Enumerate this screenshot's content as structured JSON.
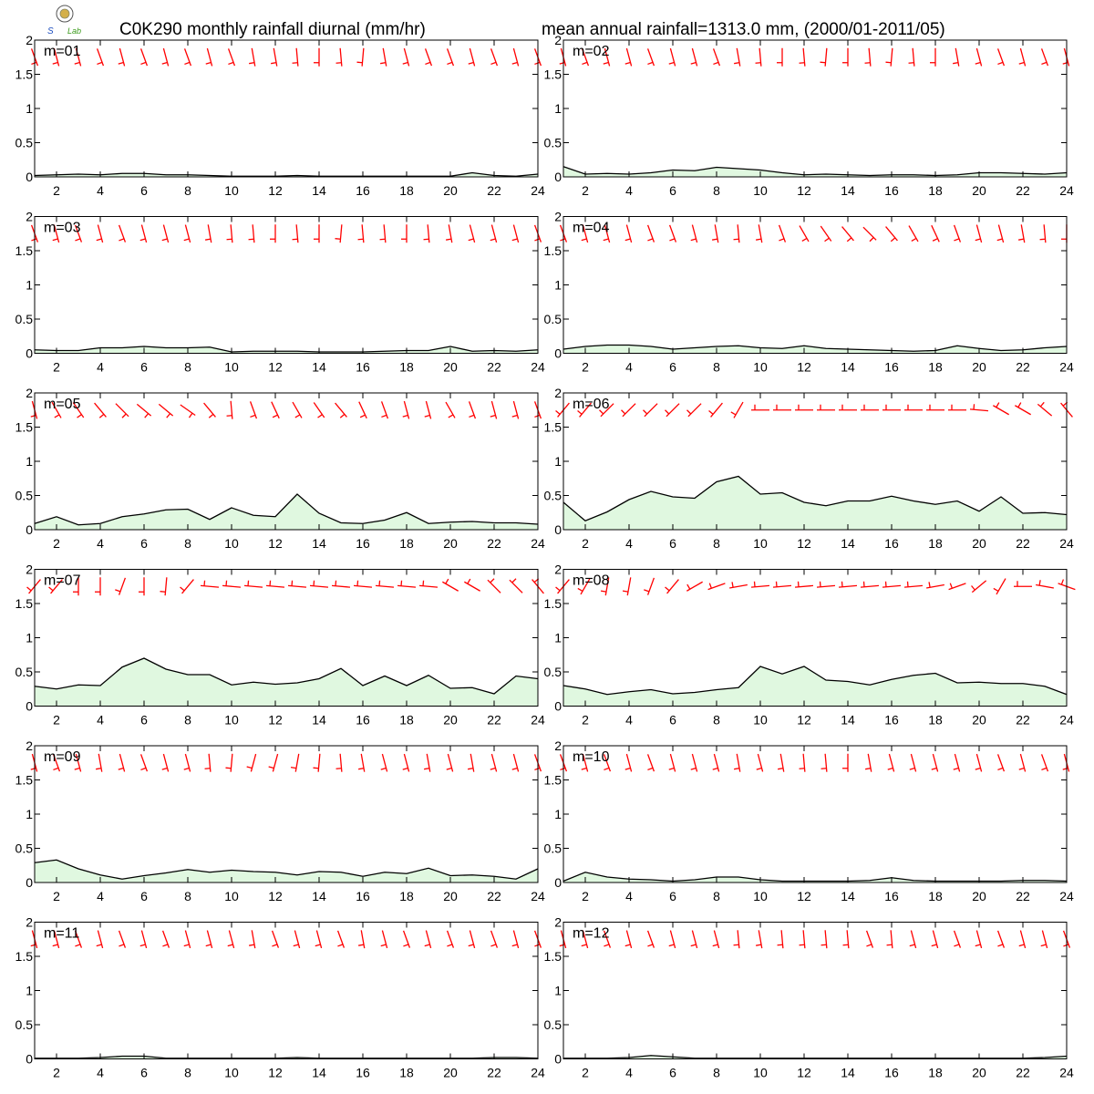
{
  "header": {
    "title_left": "C0K290 monthly rainfall diurnal (mm/hr)",
    "title_right": "mean annual rainfall=1313.0 mm, (2000/01-2011/05)",
    "logo_text": "Lab"
  },
  "colors": {
    "rain_fill": "#e0f8e0",
    "rain_line": "#000000",
    "wind_barb": "#ff0000",
    "axes": "#000000"
  },
  "chart_data": {
    "type": "area",
    "x": [
      1,
      2,
      3,
      4,
      5,
      6,
      7,
      8,
      9,
      10,
      11,
      12,
      13,
      14,
      15,
      16,
      17,
      18,
      19,
      20,
      21,
      22,
      23,
      24
    ],
    "xticks": [
      "2",
      "4",
      "6",
      "8",
      "10",
      "12",
      "14",
      "16",
      "18",
      "20",
      "22",
      "24"
    ],
    "yticks": [
      "0",
      "0.5",
      "1",
      "1.5",
      "2"
    ],
    "xlim": [
      1,
      24
    ],
    "ylim": [
      0,
      2
    ],
    "panels": [
      {
        "label": "m=01",
        "rain": [
          0.02,
          0.03,
          0.04,
          0.03,
          0.05,
          0.05,
          0.03,
          0.03,
          0.02,
          0.01,
          0.01,
          0.01,
          0.02,
          0.01,
          0.01,
          0.01,
          0.01,
          0.01,
          0.01,
          0.01,
          0.06,
          0.02,
          0.01,
          0.04
        ],
        "wind_dir": [
          340,
          345,
          345,
          340,
          345,
          340,
          345,
          340,
          345,
          340,
          350,
          350,
          355,
          0,
          355,
          5,
          350,
          345,
          340,
          340,
          345,
          340,
          345,
          340
        ]
      },
      {
        "label": "m=02",
        "rain": [
          0.15,
          0.04,
          0.05,
          0.04,
          0.06,
          0.1,
          0.09,
          0.14,
          0.12,
          0.1,
          0.06,
          0.03,
          0.04,
          0.03,
          0.02,
          0.03,
          0.03,
          0.02,
          0.03,
          0.06,
          0.06,
          0.05,
          0.04,
          0.06
        ],
        "wind_dir": [
          345,
          340,
          345,
          345,
          340,
          345,
          345,
          340,
          350,
          355,
          0,
          355,
          5,
          0,
          355,
          5,
          355,
          0,
          350,
          345,
          340,
          345,
          340,
          345
        ]
      },
      {
        "label": "m=03",
        "rain": [
          0.05,
          0.04,
          0.04,
          0.08,
          0.08,
          0.1,
          0.08,
          0.08,
          0.09,
          0.02,
          0.03,
          0.03,
          0.03,
          0.02,
          0.02,
          0.02,
          0.03,
          0.04,
          0.04,
          0.1,
          0.03,
          0.04,
          0.03,
          0.05
        ],
        "wind_dir": [
          340,
          345,
          340,
          345,
          340,
          345,
          345,
          345,
          350,
          355,
          355,
          0,
          355,
          0,
          5,
          355,
          355,
          0,
          355,
          350,
          345,
          345,
          345,
          340
        ]
      },
      {
        "label": "m=04",
        "rain": [
          0.06,
          0.1,
          0.12,
          0.12,
          0.1,
          0.06,
          0.08,
          0.1,
          0.11,
          0.08,
          0.07,
          0.11,
          0.07,
          0.06,
          0.05,
          0.04,
          0.03,
          0.04,
          0.11,
          0.07,
          0.04,
          0.05,
          0.08,
          0.1
        ],
        "wind_dir": [
          340,
          345,
          345,
          345,
          340,
          340,
          345,
          350,
          355,
          350,
          340,
          330,
          325,
          320,
          315,
          320,
          330,
          335,
          340,
          345,
          345,
          350,
          355,
          0
        ]
      },
      {
        "label": "m=05",
        "rain": [
          0.09,
          0.19,
          0.07,
          0.09,
          0.19,
          0.23,
          0.29,
          0.3,
          0.15,
          0.32,
          0.21,
          0.19,
          0.52,
          0.24,
          0.1,
          0.09,
          0.14,
          0.25,
          0.09,
          0.11,
          0.12,
          0.1,
          0.1,
          0.08
        ],
        "wind_dir": [
          345,
          330,
          325,
          320,
          315,
          310,
          310,
          305,
          320,
          355,
          340,
          335,
          330,
          325,
          320,
          335,
          340,
          345,
          345,
          330,
          340,
          345,
          345,
          340
        ]
      },
      {
        "label": "m=06",
        "rain": [
          0.4,
          0.13,
          0.26,
          0.44,
          0.56,
          0.48,
          0.46,
          0.7,
          0.78,
          0.52,
          0.54,
          0.4,
          0.35,
          0.42,
          0.42,
          0.49,
          0.42,
          0.37,
          0.42,
          0.27,
          0.48,
          0.24,
          0.25,
          0.22
        ],
        "wind_dir": [
          40,
          40,
          45,
          45,
          45,
          45,
          45,
          40,
          30,
          90,
          90,
          90,
          90,
          90,
          90,
          90,
          90,
          90,
          90,
          95,
          120,
          120,
          130,
          140
        ]
      },
      {
        "label": "m=07",
        "rain": [
          0.29,
          0.25,
          0.31,
          0.3,
          0.57,
          0.7,
          0.54,
          0.46,
          0.46,
          0.31,
          0.35,
          0.32,
          0.34,
          0.4,
          0.55,
          0.3,
          0.44,
          0.3,
          0.45,
          0.26,
          0.27,
          0.18,
          0.44,
          0.4
        ],
        "wind_dir": [
          40,
          40,
          0,
          0,
          20,
          0,
          5,
          40,
          95,
          95,
          95,
          95,
          95,
          95,
          95,
          95,
          95,
          95,
          95,
          120,
          120,
          135,
          135,
          140
        ]
      },
      {
        "label": "m=08",
        "rain": [
          0.3,
          0.25,
          0.17,
          0.21,
          0.24,
          0.18,
          0.2,
          0.24,
          0.27,
          0.58,
          0.47,
          0.58,
          0.38,
          0.36,
          0.31,
          0.39,
          0.45,
          0.48,
          0.34,
          0.35,
          0.33,
          0.33,
          0.29,
          0.17
        ],
        "wind_dir": [
          40,
          30,
          10,
          10,
          20,
          40,
          60,
          70,
          80,
          85,
          85,
          85,
          85,
          85,
          85,
          85,
          85,
          80,
          70,
          50,
          30,
          90,
          100,
          110
        ]
      },
      {
        "label": "m=09",
        "rain": [
          0.29,
          0.33,
          0.2,
          0.11,
          0.05,
          0.1,
          0.14,
          0.19,
          0.15,
          0.18,
          0.16,
          0.15,
          0.11,
          0.16,
          0.15,
          0.09,
          0.15,
          0.13,
          0.21,
          0.1,
          0.11,
          0.09,
          0.05,
          0.2
        ],
        "wind_dir": [
          345,
          340,
          345,
          350,
          345,
          340,
          345,
          345,
          355,
          5,
          15,
          15,
          10,
          5,
          355,
          350,
          345,
          345,
          350,
          345,
          350,
          345,
          345,
          340
        ]
      },
      {
        "label": "m=10",
        "rain": [
          0.02,
          0.15,
          0.08,
          0.05,
          0.04,
          0.02,
          0.04,
          0.08,
          0.08,
          0.04,
          0.02,
          0.02,
          0.02,
          0.02,
          0.03,
          0.07,
          0.03,
          0.02,
          0.02,
          0.02,
          0.02,
          0.03,
          0.03,
          0.02
        ],
        "wind_dir": [
          340,
          345,
          340,
          345,
          340,
          345,
          345,
          345,
          350,
          345,
          350,
          355,
          355,
          0,
          350,
          345,
          345,
          345,
          345,
          345,
          340,
          345,
          340,
          345
        ]
      },
      {
        "label": "m=11",
        "rain": [
          0.01,
          0.01,
          0.01,
          0.02,
          0.04,
          0.04,
          0.01,
          0.01,
          0.01,
          0.01,
          0.01,
          0.01,
          0.02,
          0.01,
          0.01,
          0.01,
          0.01,
          0.01,
          0.01,
          0.01,
          0.01,
          0.02,
          0.02,
          0.01
        ],
        "wind_dir": [
          345,
          345,
          340,
          345,
          340,
          345,
          340,
          345,
          345,
          345,
          350,
          340,
          345,
          345,
          340,
          350,
          345,
          340,
          345,
          340,
          345,
          340,
          345,
          340
        ]
      },
      {
        "label": "m=12",
        "rain": [
          0.01,
          0.01,
          0.01,
          0.02,
          0.05,
          0.03,
          0.01,
          0.01,
          0.01,
          0.01,
          0.01,
          0.01,
          0.01,
          0.01,
          0.01,
          0.01,
          0.01,
          0.01,
          0.01,
          0.01,
          0.01,
          0.01,
          0.02,
          0.04
        ],
        "wind_dir": [
          345,
          345,
          340,
          345,
          340,
          345,
          345,
          345,
          355,
          350,
          355,
          355,
          355,
          355,
          340,
          355,
          345,
          345,
          340,
          345,
          340,
          345,
          345,
          340
        ]
      }
    ]
  }
}
